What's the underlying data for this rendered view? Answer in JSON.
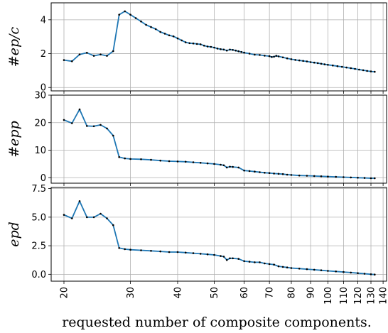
{
  "chart_data": {
    "type": "line",
    "xlabel": "requested number of composite components.",
    "x_scale": "log",
    "xlim": [
      18.5,
      143
    ],
    "x_ticks": [
      20,
      30,
      40,
      50,
      60,
      70,
      80,
      90,
      100,
      110,
      120,
      130,
      140
    ],
    "x_tick_labels": [
      "20",
      "30",
      "40",
      "50",
      "60",
      "70",
      "80",
      "90",
      "100",
      "110",
      "120",
      "130",
      "140"
    ],
    "grid": true,
    "line_color": "#1f77b4",
    "marker_color": "#000000",
    "panels": [
      {
        "ylabel": "#ep/c",
        "ylim": [
          -0.2,
          5.0
        ],
        "y_ticks": [
          0,
          2,
          4
        ],
        "y_tick_labels": [
          "0",
          "2",
          "4"
        ],
        "points": [
          [
            20,
            1.62
          ],
          [
            21,
            1.55
          ],
          [
            22,
            1.95
          ],
          [
            23,
            2.05
          ],
          [
            24,
            1.87
          ],
          [
            25,
            1.95
          ],
          [
            26,
            1.87
          ],
          [
            27,
            2.15
          ],
          [
            28,
            4.3
          ],
          [
            29,
            4.5
          ],
          [
            30,
            4.3
          ],
          [
            31,
            4.1
          ],
          [
            32,
            3.9
          ],
          [
            33,
            3.7
          ],
          [
            34,
            3.57
          ],
          [
            35,
            3.45
          ],
          [
            36,
            3.28
          ],
          [
            37,
            3.18
          ],
          [
            38,
            3.08
          ],
          [
            39,
            3.02
          ],
          [
            40,
            2.9
          ],
          [
            41,
            2.78
          ],
          [
            42,
            2.67
          ],
          [
            43,
            2.62
          ],
          [
            44,
            2.6
          ],
          [
            45,
            2.57
          ],
          [
            46,
            2.55
          ],
          [
            47,
            2.47
          ],
          [
            48,
            2.42
          ],
          [
            49,
            2.4
          ],
          [
            50,
            2.36
          ],
          [
            51,
            2.3
          ],
          [
            52,
            2.26
          ],
          [
            53,
            2.24
          ],
          [
            54,
            2.18
          ],
          [
            55,
            2.24
          ],
          [
            56,
            2.22
          ],
          [
            57,
            2.18
          ],
          [
            58,
            2.14
          ],
          [
            59,
            2.1
          ],
          [
            60,
            2.06
          ],
          [
            62,
            2.0
          ],
          [
            64,
            1.94
          ],
          [
            66,
            1.92
          ],
          [
            68,
            1.88
          ],
          [
            70,
            1.85
          ],
          [
            71,
            1.8
          ],
          [
            72,
            1.82
          ],
          [
            73,
            1.87
          ],
          [
            74,
            1.84
          ],
          [
            76,
            1.78
          ],
          [
            78,
            1.72
          ],
          [
            80,
            1.67
          ],
          [
            82,
            1.63
          ],
          [
            84,
            1.6
          ],
          [
            86,
            1.57
          ],
          [
            88,
            1.54
          ],
          [
            90,
            1.5
          ],
          [
            92,
            1.47
          ],
          [
            94,
            1.44
          ],
          [
            96,
            1.4
          ],
          [
            98,
            1.37
          ],
          [
            100,
            1.34
          ],
          [
            103,
            1.3
          ],
          [
            106,
            1.26
          ],
          [
            109,
            1.22
          ],
          [
            112,
            1.18
          ],
          [
            115,
            1.14
          ],
          [
            118,
            1.1
          ],
          [
            121,
            1.06
          ],
          [
            124,
            1.02
          ],
          [
            127,
            0.98
          ],
          [
            130,
            0.95
          ],
          [
            133,
            0.93
          ]
        ]
      },
      {
        "ylabel": "#epp",
        "ylim": [
          -2,
          30
        ],
        "y_ticks": [
          0,
          10,
          20,
          30
        ],
        "y_tick_labels": [
          "0",
          "10",
          "20",
          "30"
        ],
        "points": [
          [
            20,
            21
          ],
          [
            21,
            19.8
          ],
          [
            22,
            24.8
          ],
          [
            23,
            18.8
          ],
          [
            24,
            18.7
          ],
          [
            25,
            19.2
          ],
          [
            26,
            17.9
          ],
          [
            27,
            15.3
          ],
          [
            28,
            7.5
          ],
          [
            29,
            7.0
          ],
          [
            30,
            6.8
          ],
          [
            32,
            6.7
          ],
          [
            34,
            6.5
          ],
          [
            36,
            6.2
          ],
          [
            38,
            6.0
          ],
          [
            40,
            5.9
          ],
          [
            42,
            5.8
          ],
          [
            44,
            5.6
          ],
          [
            46,
            5.4
          ],
          [
            48,
            5.2
          ],
          [
            50,
            5.0
          ],
          [
            52,
            4.7
          ],
          [
            53,
            4.5
          ],
          [
            54,
            3.7
          ],
          [
            55,
            4.0
          ],
          [
            56,
            3.9
          ],
          [
            58,
            3.7
          ],
          [
            60,
            2.6
          ],
          [
            62,
            2.4
          ],
          [
            64,
            2.2
          ],
          [
            66,
            2.0
          ],
          [
            68,
            1.8
          ],
          [
            70,
            1.7
          ],
          [
            72,
            1.5
          ],
          [
            74,
            1.4
          ],
          [
            76,
            1.3
          ],
          [
            78,
            1.1
          ],
          [
            80,
            1.0
          ],
          [
            84,
            0.8
          ],
          [
            88,
            0.7
          ],
          [
            92,
            0.6
          ],
          [
            96,
            0.5
          ],
          [
            100,
            0.4
          ],
          [
            105,
            0.3
          ],
          [
            110,
            0.2
          ],
          [
            115,
            0.1
          ],
          [
            120,
            0.0
          ],
          [
            125,
            -0.1
          ],
          [
            130,
            -0.2
          ],
          [
            133,
            -0.2
          ]
        ]
      },
      {
        "ylabel": "epd",
        "ylim": [
          -0.6,
          7.6
        ],
        "y_ticks": [
          0.0,
          2.5,
          5.0,
          7.5
        ],
        "y_tick_labels": [
          "0.0",
          "2.5",
          "5.0",
          "7.5"
        ],
        "points": [
          [
            20,
            5.2
          ],
          [
            21,
            4.9
          ],
          [
            22,
            6.4
          ],
          [
            23,
            5.0
          ],
          [
            24,
            5.0
          ],
          [
            25,
            5.3
          ],
          [
            26,
            4.9
          ],
          [
            27,
            4.3
          ],
          [
            28,
            2.3
          ],
          [
            29,
            2.2
          ],
          [
            30,
            2.15
          ],
          [
            32,
            2.1
          ],
          [
            34,
            2.05
          ],
          [
            36,
            2.0
          ],
          [
            38,
            1.95
          ],
          [
            40,
            1.95
          ],
          [
            42,
            1.9
          ],
          [
            44,
            1.85
          ],
          [
            46,
            1.8
          ],
          [
            48,
            1.75
          ],
          [
            50,
            1.7
          ],
          [
            52,
            1.6
          ],
          [
            53,
            1.55
          ],
          [
            54,
            1.25
          ],
          [
            55,
            1.4
          ],
          [
            56,
            1.4
          ],
          [
            58,
            1.35
          ],
          [
            60,
            1.15
          ],
          [
            62,
            1.1
          ],
          [
            64,
            1.05
          ],
          [
            66,
            1.05
          ],
          [
            68,
            0.95
          ],
          [
            70,
            0.9
          ],
          [
            72,
            0.85
          ],
          [
            74,
            0.7
          ],
          [
            76,
            0.65
          ],
          [
            78,
            0.6
          ],
          [
            80,
            0.55
          ],
          [
            84,
            0.5
          ],
          [
            88,
            0.45
          ],
          [
            92,
            0.4
          ],
          [
            96,
            0.35
          ],
          [
            100,
            0.3
          ],
          [
            105,
            0.25
          ],
          [
            110,
            0.2
          ],
          [
            115,
            0.15
          ],
          [
            120,
            0.1
          ],
          [
            125,
            0.05
          ],
          [
            130,
            0.0
          ],
          [
            133,
            -0.02
          ]
        ]
      }
    ]
  }
}
